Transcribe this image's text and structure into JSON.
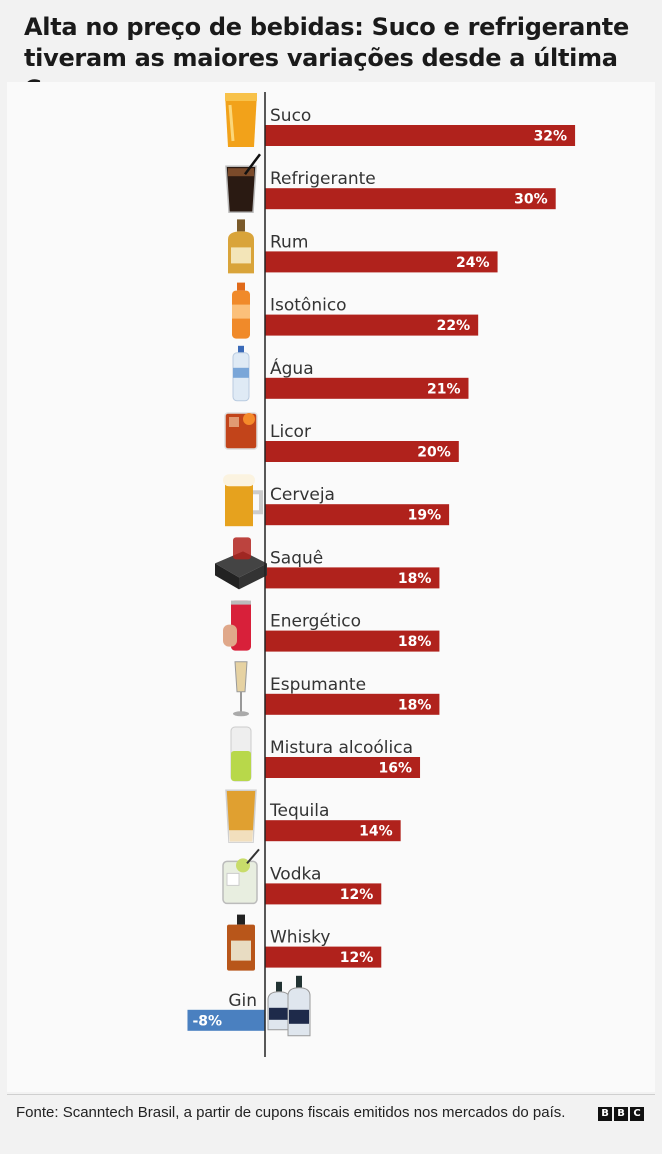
{
  "title": "Alta no preço de bebidas: Suco e refrigerante tiveram as maiores variações desde a última Copa",
  "source": "Fonte: Scanntech Brasil, a partir de cupons fiscais emitidos nos mercados do país.",
  "brand": {
    "letters": [
      "B",
      "B",
      "C"
    ]
  },
  "colors": {
    "positive": "#b0221c",
    "negative": "#4a80c0",
    "axis": "#222222",
    "label": "#333333"
  },
  "chart_data": {
    "type": "bar",
    "orientation": "horizontal",
    "unit": "%",
    "title": "Alta no preço de bebidas: Suco e refrigerante tiveram as maiores variações desde a última Copa",
    "categories": [
      "Suco",
      "Refrigerante",
      "Rum",
      "Isotônico",
      "Água",
      "Licor",
      "Cerveja",
      "Saquê",
      "Energético",
      "Espumante",
      "Mistura alcoólica",
      "Tequila",
      "Vodka",
      "Whisky",
      "Gin"
    ],
    "values": [
      32,
      30,
      24,
      22,
      21,
      20,
      19,
      18,
      18,
      18,
      16,
      14,
      12,
      12,
      -8
    ],
    "labels": [
      "32%",
      "30%",
      "24%",
      "22%",
      "21%",
      "20%",
      "19%",
      "18%",
      "18%",
      "18%",
      "16%",
      "14%",
      "12%",
      "12%",
      "-8%"
    ],
    "icons": [
      "juice-glass-icon",
      "soda-glass-icon",
      "rum-bottle-icon",
      "isotonic-bottle-icon",
      "water-bottle-icon",
      "liqueur-glass-icon",
      "beer-mug-icon",
      "sake-box-icon",
      "energy-drink-can-icon",
      "sparkling-wine-glass-icon",
      "mixed-drink-can-icon",
      "tequila-shot-icon",
      "vodka-glass-icon",
      "whisky-bottle-icon",
      "gin-bottles-icon"
    ],
    "grid": false,
    "legend": "none"
  }
}
